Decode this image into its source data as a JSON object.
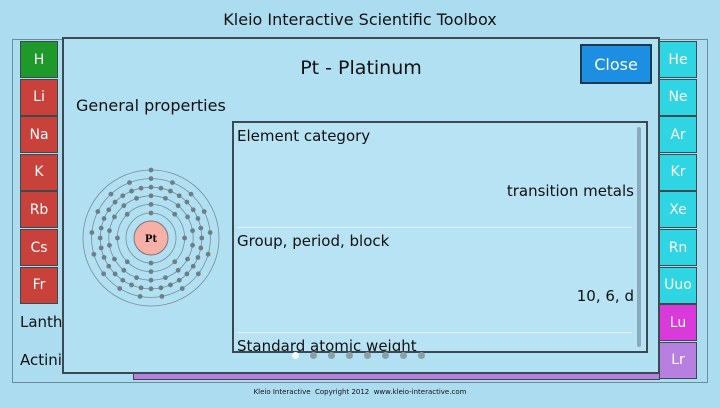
{
  "header": {
    "title": "Kleio Interactive Scientific Toolbox"
  },
  "periodic_table": {
    "left_column": [
      "H",
      "Li",
      "Na",
      "K",
      "Rb",
      "Cs",
      "Fr"
    ],
    "right_column": [
      "He",
      "Ne",
      "Ar",
      "Kr",
      "Xe",
      "Rn",
      "Uuo",
      "Lu",
      "Lr"
    ],
    "row_labels": [
      "Lanth",
      "Actini"
    ]
  },
  "dialog": {
    "title": "Pt - Platinum",
    "close_button": "Close",
    "section_title": "General properties",
    "atom_symbol": "Pt",
    "properties": [
      {
        "label": "Element category",
        "value": "transition metals"
      },
      {
        "label": "Group, period, block",
        "value": "10, 6, d"
      },
      {
        "label": "Standard atomic weight"
      }
    ]
  },
  "footer": "Kleio Interactive  Copyright 2012  www.kleio-interactive.com"
}
